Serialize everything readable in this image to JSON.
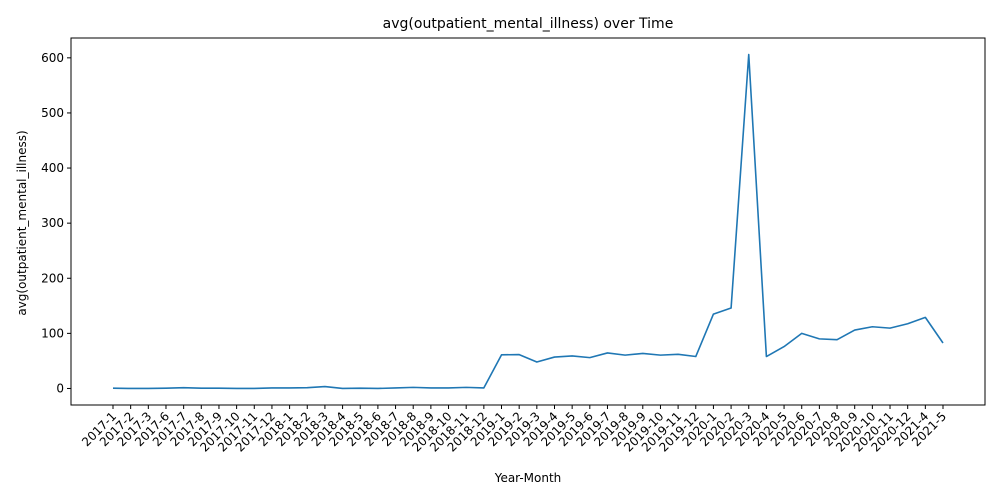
{
  "chart_data": {
    "type": "line",
    "title": "avg(outpatient_mental_illness) over Time",
    "xlabel": "Year-Month",
    "ylabel": "avg(outpatient_mental_illness)",
    "ylim": [
      -30,
      636
    ],
    "yticks": [
      0,
      100,
      200,
      300,
      400,
      500,
      600
    ],
    "grid": false,
    "color": "#1f77b4",
    "categories": [
      "2017-1",
      "2017-2",
      "2017-3",
      "2017-6",
      "2017-7",
      "2017-8",
      "2017-9",
      "2017-10",
      "2017-11",
      "2017-12",
      "2018-1",
      "2018-2",
      "2018-3",
      "2018-4",
      "2018-5",
      "2018-6",
      "2018-7",
      "2018-8",
      "2018-9",
      "2018-10",
      "2018-11",
      "2018-12",
      "2019-1",
      "2019-2",
      "2019-3",
      "2019-4",
      "2019-5",
      "2019-6",
      "2019-7",
      "2019-8",
      "2019-9",
      "2019-10",
      "2019-11",
      "2019-12",
      "2020-1",
      "2020-2",
      "2020-3",
      "2020-4",
      "2020-5",
      "2020-6",
      "2020-7",
      "2020-8",
      "2020-9",
      "2020-10",
      "2020-11",
      "2020-12",
      "2021-4",
      "2021-5"
    ],
    "values": [
      0.5,
      0,
      0,
      0.5,
      1.5,
      0.5,
      0.5,
      0,
      0,
      1,
      1,
      1.5,
      3.5,
      0,
      0.5,
      0,
      1,
      2,
      1,
      1,
      2,
      1,
      61,
      61.5,
      48,
      57,
      59,
      56,
      64.5,
      60.5,
      63.5,
      60.5,
      62,
      58,
      135,
      146,
      606,
      58,
      76,
      100,
      90,
      88.5,
      106,
      112,
      109.5,
      117.5,
      129,
      82.5
    ]
  }
}
